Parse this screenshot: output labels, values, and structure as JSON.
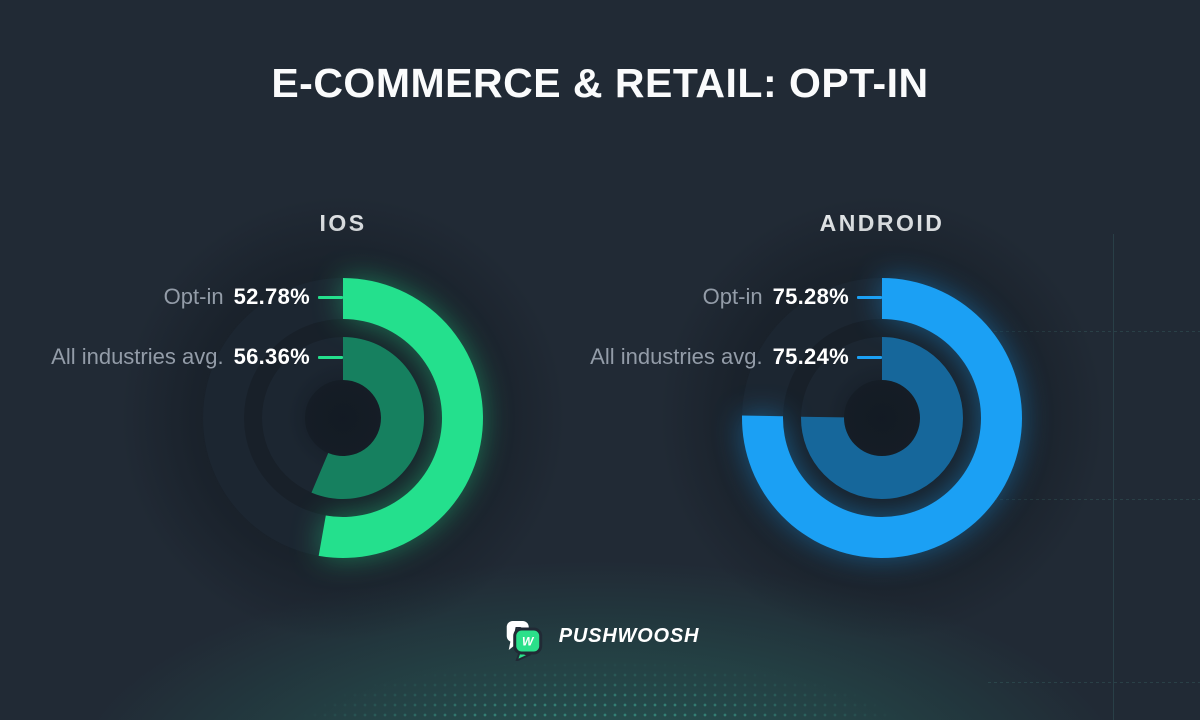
{
  "title": "E-COMMERCE & RETAIL: OPT-IN",
  "brand": {
    "name": "PUSHWOOSH",
    "icon": "pushwoosh-speech-bubbles",
    "accent_green": "#2BE08A"
  },
  "background": {
    "base": "#212A35",
    "bottom_glow": "teal",
    "grid_color": "#68D4C1"
  },
  "chart_data": {
    "type": "donut",
    "title": "E-COMMERCE & RETAIL: OPT-IN",
    "start_angle_deg": 0,
    "direction": "clockwise",
    "legend_position": "left-of-rings",
    "charts": [
      {
        "platform": "IOS",
        "accent": "#24E08D",
        "rings": [
          {
            "label": "Opt-in",
            "value_pct": 52.78,
            "display": "52.78%",
            "ring": "outer",
            "color": "#24E08D"
          },
          {
            "label": "All industries avg.",
            "value_pct": 56.36,
            "display": "56.36%",
            "ring": "inner",
            "color": "#16805F"
          }
        ]
      },
      {
        "platform": "ANDROID",
        "accent": "#1BA0F4",
        "rings": [
          {
            "label": "Opt-in",
            "value_pct": 75.28,
            "display": "75.28%",
            "ring": "outer",
            "color": "#1BA0F4"
          },
          {
            "label": "All industries avg.",
            "value_pct": 75.24,
            "display": "75.24%",
            "ring": "inner",
            "color": "#16679B"
          }
        ]
      }
    ]
  }
}
